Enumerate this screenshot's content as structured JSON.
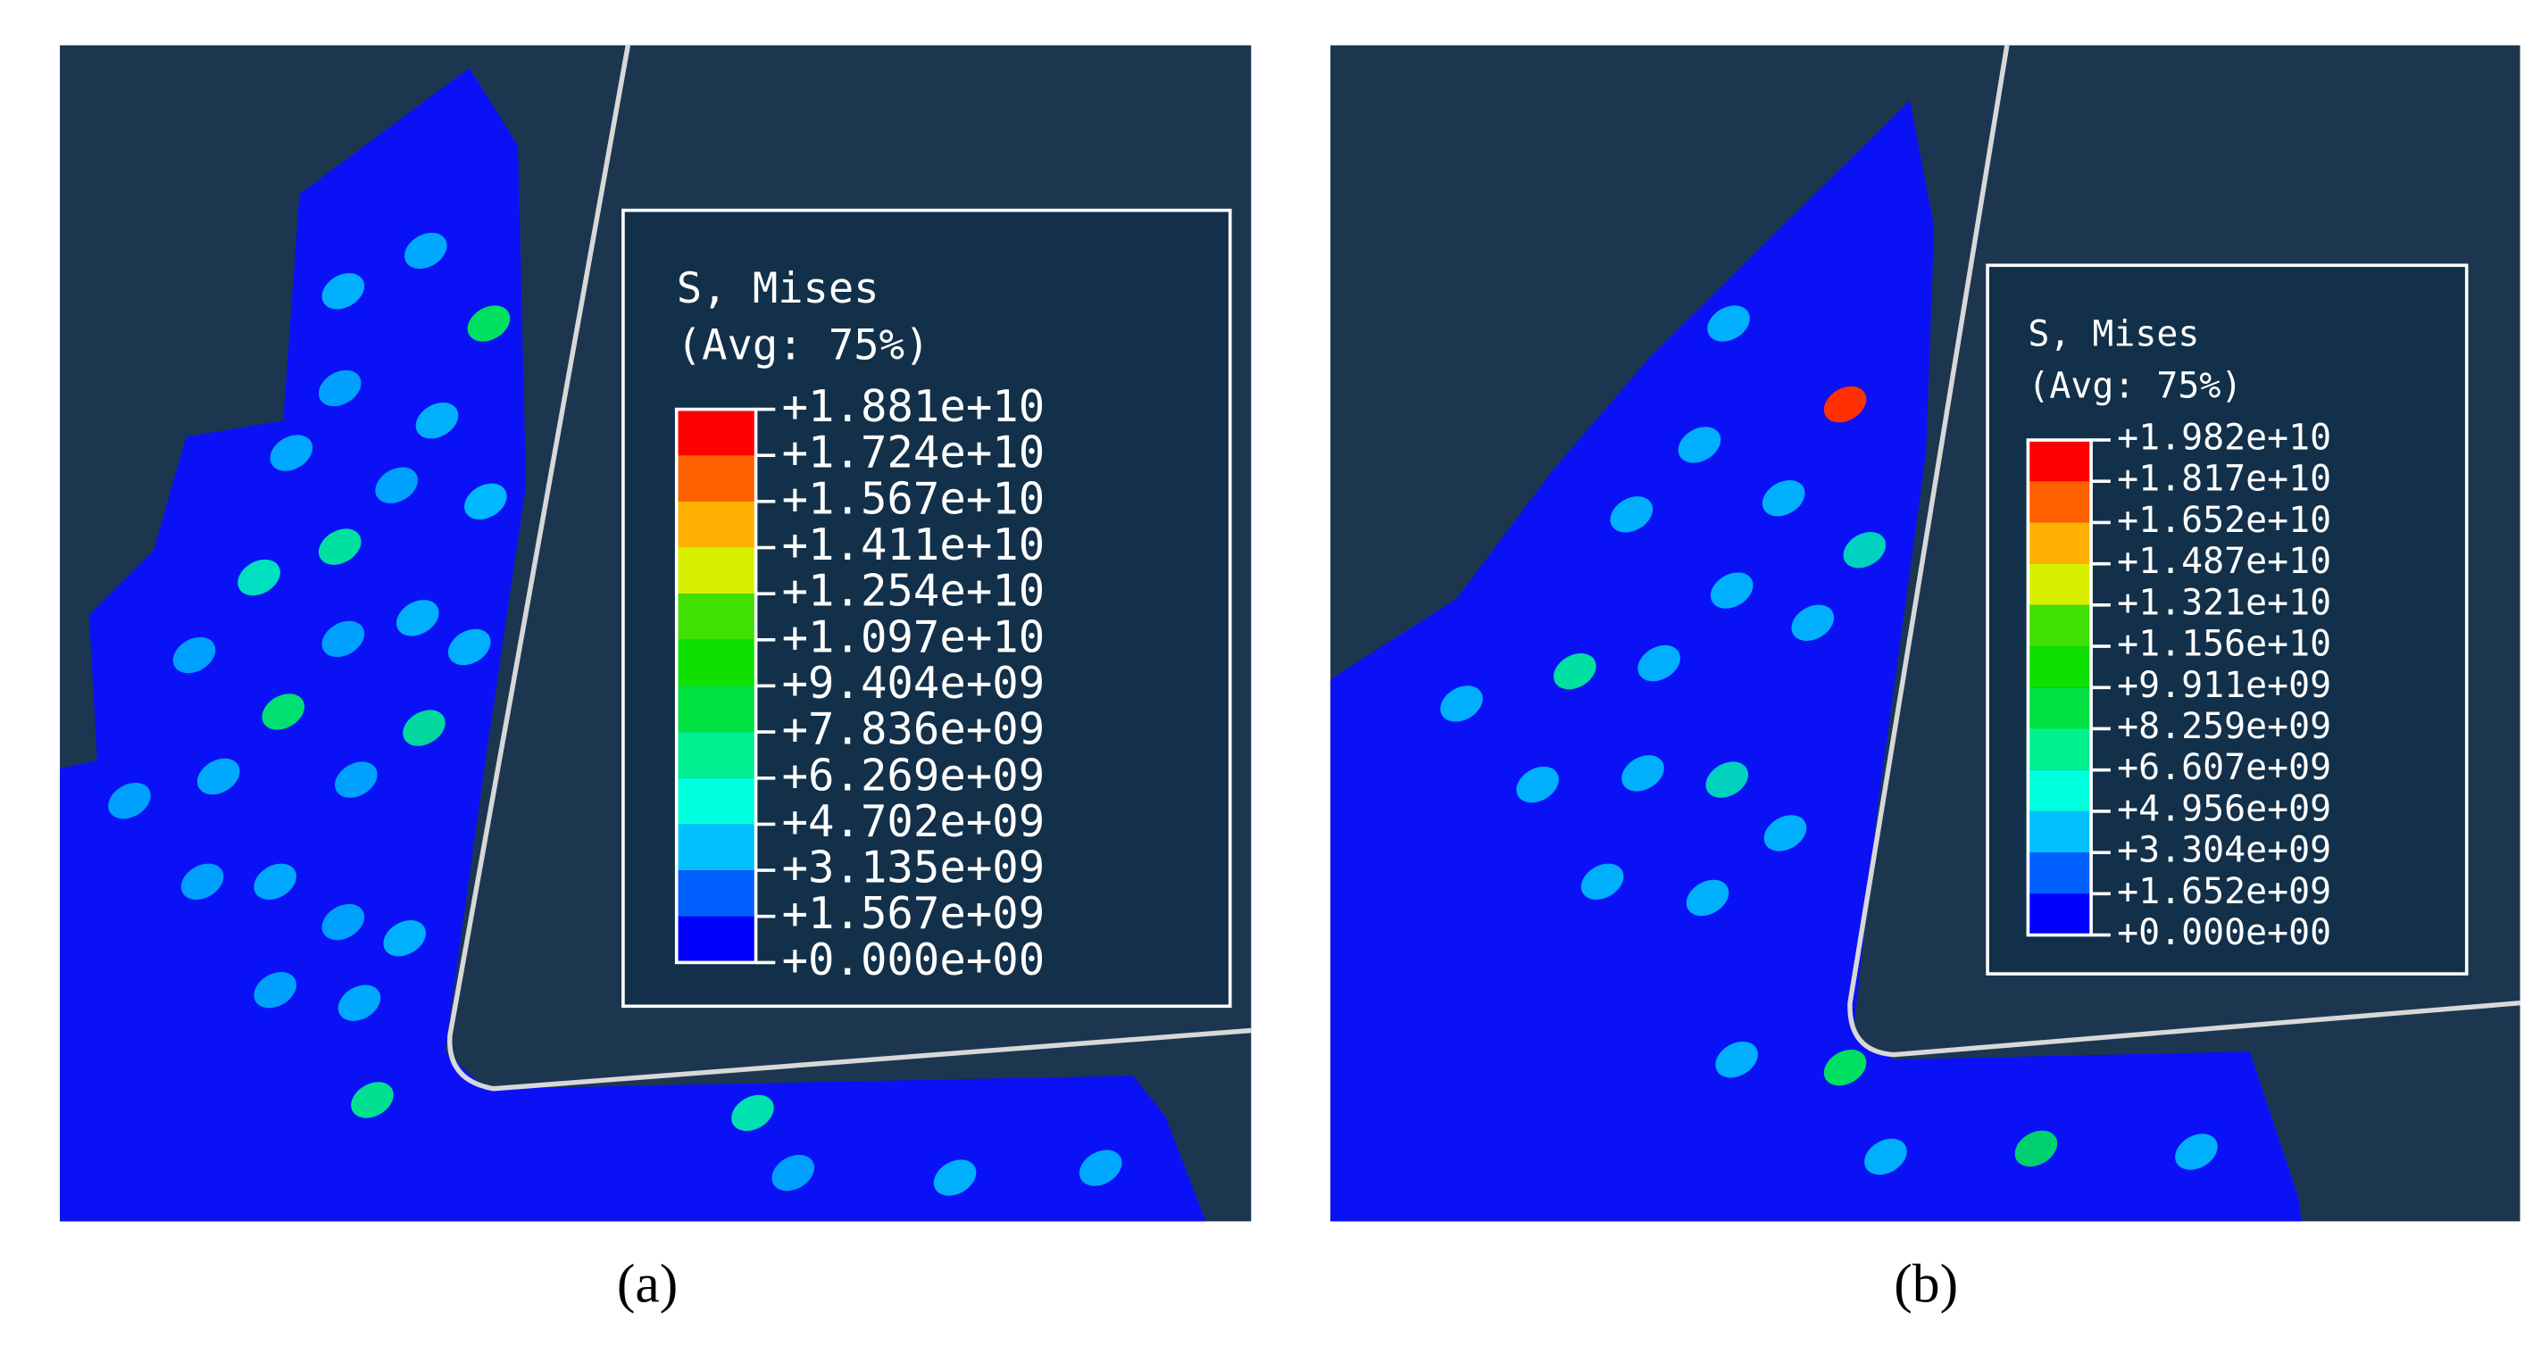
{
  "panels": [
    {
      "legend": {
        "title": "S, Mises",
        "subtitle": "(Avg: 75%)",
        "labels": [
          "+1.881e+10",
          "+1.724e+10",
          "+1.567e+10",
          "+1.411e+10",
          "+1.254e+10",
          "+1.097e+10",
          "+9.404e+09",
          "+7.836e+09",
          "+6.269e+09",
          "+4.702e+09",
          "+3.135e+09",
          "+1.567e+09",
          "+0.000e+00"
        ]
      },
      "caption": "(a)"
    },
    {
      "legend": {
        "title": "S, Mises",
        "subtitle": "(Avg: 75%)",
        "labels": [
          "+1.982e+10",
          "+1.817e+10",
          "+1.652e+10",
          "+1.487e+10",
          "+1.321e+10",
          "+1.156e+10",
          "+9.911e+09",
          "+8.259e+09",
          "+6.607e+09",
          "+4.956e+09",
          "+3.304e+09",
          "+1.652e+09",
          "+0.000e+00"
        ]
      },
      "caption": "(b)"
    }
  ]
}
